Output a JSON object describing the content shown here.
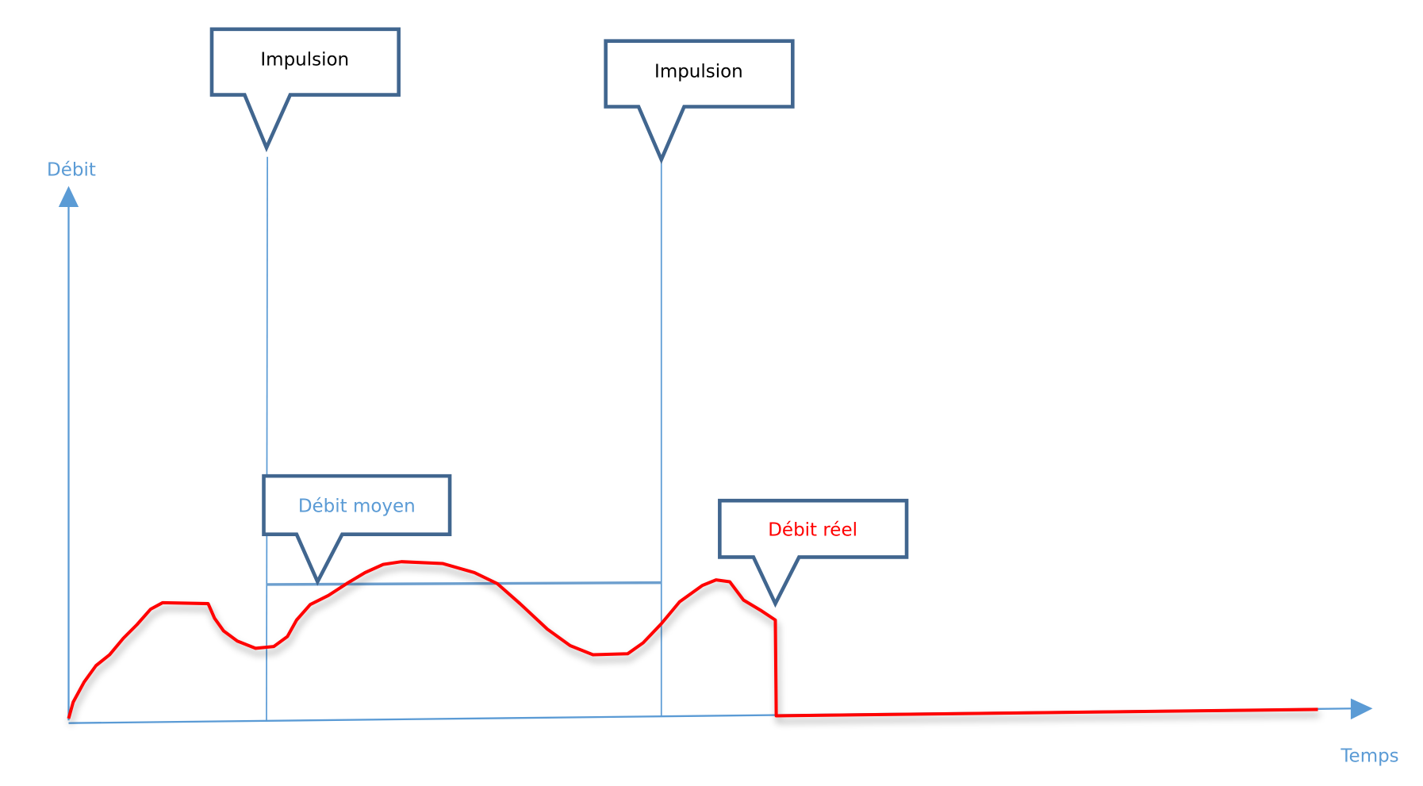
{
  "axes": {
    "y_label": "Débit",
    "x_label": "Temps"
  },
  "callouts": [
    {
      "label": "Impulsion"
    },
    {
      "label": "Impulsion"
    },
    {
      "label": "Débit moyen"
    },
    {
      "label": "Débit réel"
    }
  ]
}
